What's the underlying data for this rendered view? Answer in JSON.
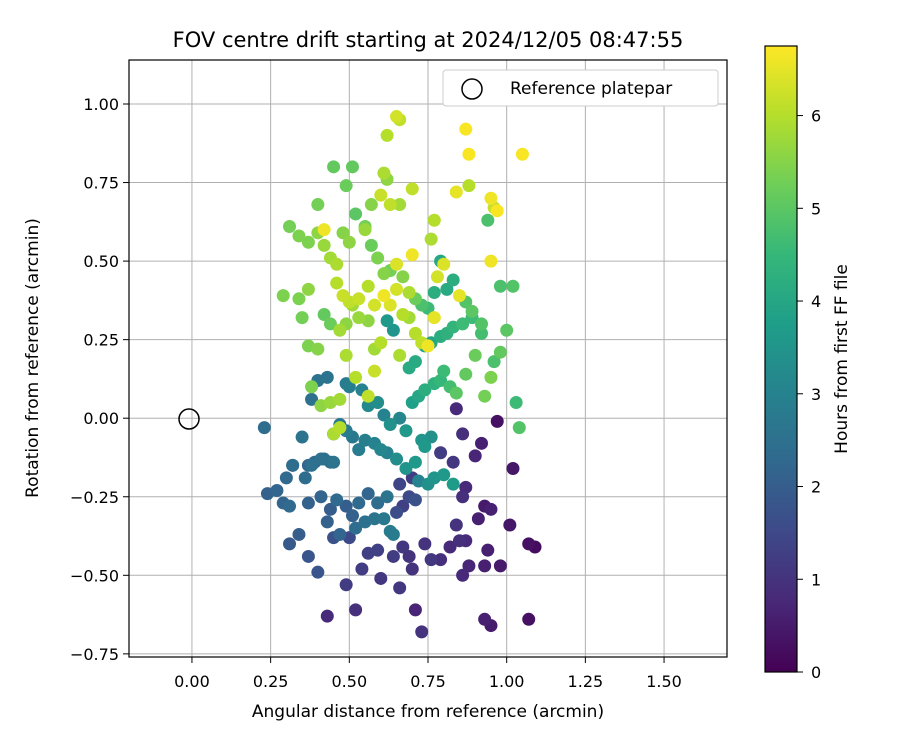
{
  "chart_data": {
    "type": "scatter",
    "title": "FOV centre drift starting at 2024/12/05 08:47:55",
    "xlabel": "Angular distance from reference (arcmin)",
    "ylabel": "Rotation from reference (arcmin)",
    "xlim": [
      -0.2,
      1.7
    ],
    "ylim": [
      -0.76,
      1.14
    ],
    "xticks": [
      0.0,
      0.25,
      0.5,
      0.75,
      1.0,
      1.25,
      1.5
    ],
    "xtick_labels": [
      "0.00",
      "0.25",
      "0.50",
      "0.75",
      "1.00",
      "1.25",
      "1.50"
    ],
    "yticks": [
      -0.75,
      -0.5,
      -0.25,
      0.0,
      0.25,
      0.5,
      0.75,
      1.0
    ],
    "ytick_labels": [
      "−0.75",
      "−0.50",
      "−0.25",
      "0.00",
      "0.25",
      "0.50",
      "0.75",
      "1.00"
    ],
    "grid": true,
    "legend": {
      "position": "top-right",
      "entries": [
        {
          "label": "Reference platepar",
          "marker": "open-circle"
        }
      ]
    },
    "reference_point": {
      "x": 0.0,
      "y": 0.0
    },
    "colorbar": {
      "label": "Hours from first FF file",
      "min": 0,
      "max": 6.75,
      "ticks": [
        0,
        1,
        2,
        3,
        4,
        5,
        6
      ],
      "tick_labels": [
        "0",
        "1",
        "2",
        "3",
        "4",
        "5",
        "6"
      ],
      "colormap": "viridis",
      "colors": [
        "#440154",
        "#482878",
        "#3e4989",
        "#31688e",
        "#26828e",
        "#1f9e89",
        "#35b779",
        "#6ece58",
        "#b5de2b",
        "#fde725"
      ]
    },
    "points": [
      [
        0.43,
        -0.63,
        0.8
      ],
      [
        0.52,
        -0.61,
        0.9
      ],
      [
        0.66,
        -0.54,
        1.1
      ],
      [
        0.71,
        -0.61,
        0.7
      ],
      [
        0.73,
        -0.68,
        1.0
      ],
      [
        0.95,
        -0.66,
        0.5
      ],
      [
        0.93,
        -0.64,
        0.6
      ],
      [
        1.07,
        -0.64,
        0.3
      ],
      [
        1.09,
        -0.41,
        0.2
      ],
      [
        1.07,
        -0.4,
        0.3
      ],
      [
        1.01,
        -0.34,
        0.4
      ],
      [
        0.93,
        -0.47,
        0.6
      ],
      [
        0.98,
        -0.47,
        0.5
      ],
      [
        0.94,
        -0.42,
        0.6
      ],
      [
        0.86,
        -0.5,
        0.8
      ],
      [
        0.88,
        -0.47,
        0.7
      ],
      [
        0.79,
        -0.45,
        0.9
      ],
      [
        0.82,
        -0.41,
        0.8
      ],
      [
        0.85,
        -0.39,
        0.9
      ],
      [
        0.87,
        -0.39,
        0.8
      ],
      [
        0.74,
        -0.4,
        1.0
      ],
      [
        0.69,
        -0.44,
        1.0
      ],
      [
        0.67,
        -0.41,
        1.1
      ],
      [
        0.64,
        -0.44,
        1.2
      ],
      [
        0.59,
        -0.42,
        1.3
      ],
      [
        0.56,
        -0.43,
        1.3
      ],
      [
        0.6,
        -0.51,
        1.1
      ],
      [
        0.54,
        -0.48,
        1.2
      ],
      [
        0.7,
        -0.48,
        1.0
      ],
      [
        0.76,
        -0.45,
        1.1
      ],
      [
        0.49,
        -0.53,
        1.2
      ],
      [
        0.5,
        -0.38,
        1.5
      ],
      [
        0.45,
        -0.38,
        1.7
      ],
      [
        0.37,
        -0.44,
        1.8
      ],
      [
        0.31,
        -0.4,
        1.9
      ],
      [
        0.34,
        -0.37,
        2.0
      ],
      [
        0.4,
        -0.49,
        1.8
      ],
      [
        0.24,
        -0.24,
        2.1
      ],
      [
        0.27,
        -0.23,
        2.2
      ],
      [
        0.3,
        -0.19,
        2.3
      ],
      [
        0.32,
        -0.15,
        2.4
      ],
      [
        0.29,
        -0.27,
        2.2
      ],
      [
        0.31,
        -0.28,
        2.3
      ],
      [
        0.36,
        -0.19,
        2.4
      ],
      [
        0.38,
        -0.15,
        2.5
      ],
      [
        0.42,
        -0.13,
        2.5
      ],
      [
        0.45,
        -0.14,
        2.6
      ],
      [
        0.37,
        -0.27,
        2.1
      ],
      [
        0.41,
        -0.25,
        2.2
      ],
      [
        0.44,
        -0.29,
        2.0
      ],
      [
        0.46,
        -0.26,
        2.3
      ],
      [
        0.49,
        -0.28,
        2.0
      ],
      [
        0.51,
        -0.31,
        2.1
      ],
      [
        0.43,
        -0.33,
        2.1
      ],
      [
        0.47,
        -0.37,
        2.2
      ],
      [
        0.52,
        -0.35,
        2.4
      ],
      [
        0.55,
        -0.33,
        2.5
      ],
      [
        0.58,
        -0.32,
        2.6
      ],
      [
        0.61,
        -0.32,
        2.7
      ],
      [
        0.63,
        -0.36,
        2.8
      ],
      [
        0.64,
        -0.37,
        2.8
      ],
      [
        0.53,
        -0.27,
        2.3
      ],
      [
        0.56,
        -0.24,
        2.2
      ],
      [
        0.59,
        -0.27,
        2.4
      ],
      [
        0.62,
        -0.25,
        2.6
      ],
      [
        0.65,
        -0.3,
        1.6
      ],
      [
        0.67,
        -0.28,
        1.3
      ],
      [
        0.69,
        -0.25,
        1.5
      ],
      [
        0.71,
        -0.26,
        1.7
      ],
      [
        0.66,
        -0.21,
        1.4
      ],
      [
        0.7,
        -0.19,
        1.2
      ],
      [
        0.72,
        -0.2,
        3.0
      ],
      [
        0.75,
        -0.21,
        3.4
      ],
      [
        0.77,
        -0.19,
        3.5
      ],
      [
        0.8,
        -0.18,
        3.6
      ],
      [
        0.83,
        -0.21,
        3.7
      ],
      [
        0.86,
        -0.25,
        0.9
      ],
      [
        0.87,
        -0.22,
        0.8
      ],
      [
        0.84,
        -0.34,
        1.0
      ],
      [
        0.91,
        -0.32,
        0.6
      ],
      [
        0.93,
        -0.28,
        0.5
      ],
      [
        0.95,
        -0.29,
        0.6
      ],
      [
        0.9,
        -0.12,
        0.7
      ],
      [
        0.92,
        -0.08,
        0.6
      ],
      [
        0.86,
        -0.05,
        0.9
      ],
      [
        0.84,
        0.03,
        0.8
      ],
      [
        0.97,
        -0.01,
        0.3
      ],
      [
        1.02,
        -0.16,
        0.4
      ],
      [
        0.83,
        -0.14,
        1.1
      ],
      [
        0.79,
        -0.11,
        1.2
      ],
      [
        0.76,
        -0.06,
        3.4
      ],
      [
        0.73,
        -0.07,
        3.5
      ],
      [
        0.74,
        -0.09,
        3.6
      ],
      [
        0.71,
        -0.14,
        3.6
      ],
      [
        0.68,
        -0.16,
        3.5
      ],
      [
        0.65,
        -0.13,
        3.3
      ],
      [
        0.62,
        -0.11,
        3.0
      ],
      [
        0.6,
        -0.1,
        3.1
      ],
      [
        0.58,
        -0.08,
        3.0
      ],
      [
        0.55,
        -0.07,
        2.9
      ],
      [
        0.53,
        -0.1,
        2.8
      ],
      [
        0.51,
        -0.06,
        2.7
      ],
      [
        0.49,
        -0.04,
        2.8
      ],
      [
        0.47,
        -0.02,
        2.7
      ],
      [
        0.45,
        -0.05,
        2.6
      ],
      [
        0.44,
        -0.14,
        2.5
      ],
      [
        0.41,
        -0.13,
        2.5
      ],
      [
        0.39,
        -0.14,
        2.3
      ],
      [
        0.37,
        -0.15,
        2.2
      ],
      [
        0.35,
        -0.06,
        2.6
      ],
      [
        0.32,
        -0.15,
        2.4
      ],
      [
        0.23,
        -0.03,
        2.4
      ],
      [
        0.38,
        0.06,
        2.5
      ],
      [
        0.4,
        0.12,
        2.6
      ],
      [
        0.43,
        0.13,
        2.6
      ],
      [
        0.49,
        0.11,
        2.8
      ],
      [
        0.5,
        0.1,
        2.9
      ],
      [
        0.54,
        0.09,
        3.0
      ],
      [
        0.56,
        0.04,
        3.2
      ],
      [
        0.59,
        0.05,
        3.3
      ],
      [
        0.61,
        0.01,
        3.0
      ],
      [
        0.63,
        -0.02,
        3.4
      ],
      [
        0.66,
        0.0,
        3.1
      ],
      [
        0.68,
        -0.04,
        3.6
      ],
      [
        0.7,
        0.05,
        3.8
      ],
      [
        0.72,
        0.07,
        4.0
      ],
      [
        0.74,
        0.09,
        4.2
      ],
      [
        0.77,
        0.11,
        4.3
      ],
      [
        0.79,
        0.12,
        4.5
      ],
      [
        0.8,
        0.15,
        4.6
      ],
      [
        0.82,
        0.1,
        4.7
      ],
      [
        0.84,
        0.08,
        5.0
      ],
      [
        0.87,
        0.14,
        5.1
      ],
      [
        0.9,
        0.2,
        5.2
      ],
      [
        0.93,
        0.07,
        5.3
      ],
      [
        0.95,
        0.13,
        5.4
      ],
      [
        0.98,
        0.21,
        5.1
      ],
      [
        1.0,
        0.28,
        5.0
      ],
      [
        1.03,
        0.05,
        4.6
      ],
      [
        1.04,
        -0.03,
        4.9
      ],
      [
        0.96,
        0.18,
        4.8
      ],
      [
        0.92,
        0.27,
        4.7
      ],
      [
        0.89,
        0.32,
        4.6
      ],
      [
        0.86,
        0.3,
        4.6
      ],
      [
        0.83,
        0.29,
        4.4
      ],
      [
        0.81,
        0.27,
        4.3
      ],
      [
        0.79,
        0.26,
        4.2
      ],
      [
        0.76,
        0.24,
        4.0
      ],
      [
        0.74,
        0.23,
        3.8
      ],
      [
        0.71,
        0.18,
        4.1
      ],
      [
        0.69,
        0.16,
        4.1
      ],
      [
        0.66,
        0.2,
        5.9
      ],
      [
        0.64,
        0.28,
        3.5
      ],
      [
        0.62,
        0.31,
        3.6
      ],
      [
        0.58,
        0.22,
        5.8
      ],
      [
        0.56,
        0.31,
        5.6
      ],
      [
        0.53,
        0.32,
        5.7
      ],
      [
        0.51,
        0.36,
        5.8
      ],
      [
        0.49,
        0.3,
        5.6
      ],
      [
        0.47,
        0.28,
        5.8
      ],
      [
        0.44,
        0.3,
        5.2
      ],
      [
        0.42,
        0.33,
        5.1
      ],
      [
        0.4,
        0.22,
        5.5
      ],
      [
        0.37,
        0.23,
        5.4
      ],
      [
        0.35,
        0.32,
        5.3
      ],
      [
        0.34,
        0.38,
        5.4
      ],
      [
        0.37,
        0.41,
        5.6
      ],
      [
        0.29,
        0.39,
        5.4
      ],
      [
        0.31,
        0.61,
        5.3
      ],
      [
        0.34,
        0.58,
        5.4
      ],
      [
        0.37,
        0.56,
        5.4
      ],
      [
        0.4,
        0.59,
        5.6
      ],
      [
        0.42,
        0.55,
        5.7
      ],
      [
        0.44,
        0.51,
        5.8
      ],
      [
        0.46,
        0.49,
        5.9
      ],
      [
        0.48,
        0.59,
        5.5
      ],
      [
        0.5,
        0.56,
        5.6
      ],
      [
        0.52,
        0.65,
        5.0
      ],
      [
        0.55,
        0.61,
        5.3
      ],
      [
        0.57,
        0.55,
        5.2
      ],
      [
        0.59,
        0.51,
        5.4
      ],
      [
        0.61,
        0.46,
        5.5
      ],
      [
        0.63,
        0.47,
        5.3
      ],
      [
        0.65,
        0.49,
        6.4
      ],
      [
        0.67,
        0.45,
        5.5
      ],
      [
        0.69,
        0.4,
        5.9
      ],
      [
        0.71,
        0.38,
        5.2
      ],
      [
        0.73,
        0.36,
        4.8
      ],
      [
        0.75,
        0.35,
        4.6
      ],
      [
        0.77,
        0.4,
        4.2
      ],
      [
        0.79,
        0.5,
        4.0
      ],
      [
        0.81,
        0.41,
        4.1
      ],
      [
        0.83,
        0.44,
        4.2
      ],
      [
        0.85,
        0.39,
        6.5
      ],
      [
        0.87,
        0.37,
        4.9
      ],
      [
        0.89,
        0.34,
        5.0
      ],
      [
        0.92,
        0.3,
        4.9
      ],
      [
        0.94,
        0.63,
        4.8
      ],
      [
        0.96,
        0.67,
        6.2
      ],
      [
        0.98,
        0.42,
        4.8
      ],
      [
        1.02,
        0.42,
        4.9
      ],
      [
        0.95,
        0.7,
        6.6
      ],
      [
        0.97,
        0.66,
        6.7
      ],
      [
        0.95,
        0.5,
        6.6
      ],
      [
        0.88,
        0.74,
        6.0
      ],
      [
        0.84,
        0.72,
        6.5
      ],
      [
        0.77,
        0.63,
        6.0
      ],
      [
        0.76,
        0.57,
        5.9
      ],
      [
        0.7,
        0.73,
        6.1
      ],
      [
        0.7,
        0.52,
        6.6
      ],
      [
        0.66,
        0.68,
        5.8
      ],
      [
        0.63,
        0.68,
        6.1
      ],
      [
        0.61,
        0.78,
        5.9
      ],
      [
        0.62,
        0.76,
        5.6
      ],
      [
        0.6,
        0.71,
        6.2
      ],
      [
        0.57,
        0.68,
        5.5
      ],
      [
        0.55,
        0.6,
        5.7
      ],
      [
        0.51,
        0.8,
        5.1
      ],
      [
        0.49,
        0.74,
        5.2
      ],
      [
        0.45,
        0.8,
        5.1
      ],
      [
        0.4,
        0.68,
        5.3
      ],
      [
        0.46,
        0.43,
        6.0
      ],
      [
        0.48,
        0.39,
        6.2
      ],
      [
        0.5,
        0.37,
        6.1
      ],
      [
        0.53,
        0.38,
        6.2
      ],
      [
        0.56,
        0.42,
        6.0
      ],
      [
        0.58,
        0.36,
        6.3
      ],
      [
        0.61,
        0.39,
        6.6
      ],
      [
        0.63,
        0.36,
        6.4
      ],
      [
        0.65,
        0.41,
        6.3
      ],
      [
        0.67,
        0.33,
        6.0
      ],
      [
        0.69,
        0.32,
        5.8
      ],
      [
        0.71,
        0.27,
        6.0
      ],
      [
        0.73,
        0.24,
        6.1
      ],
      [
        0.75,
        0.23,
        6.6
      ],
      [
        0.77,
        0.32,
        6.5
      ],
      [
        0.78,
        0.45,
        6.3
      ],
      [
        0.8,
        0.49,
        6.4
      ],
      [
        0.6,
        0.24,
        6.0
      ],
      [
        0.58,
        0.15,
        6.2
      ],
      [
        0.56,
        0.07,
        6.1
      ],
      [
        0.52,
        0.13,
        6.0
      ],
      [
        0.49,
        0.2,
        5.9
      ],
      [
        0.47,
        0.06,
        5.8
      ],
      [
        0.44,
        0.05,
        5.7
      ],
      [
        0.41,
        0.04,
        5.6
      ],
      [
        0.38,
        0.1,
        5.4
      ],
      [
        0.45,
        -0.05,
        5.9
      ],
      [
        0.47,
        -0.03,
        6.0
      ],
      [
        0.66,
        0.95,
        6.1
      ],
      [
        0.65,
        0.96,
        6.3
      ],
      [
        0.62,
        0.9,
        6.0
      ],
      [
        0.87,
        0.92,
        6.7
      ],
      [
        0.88,
        0.84,
        6.7
      ],
      [
        1.05,
        0.84,
        6.7
      ],
      [
        0.42,
        0.6,
        6.6
      ]
    ]
  }
}
